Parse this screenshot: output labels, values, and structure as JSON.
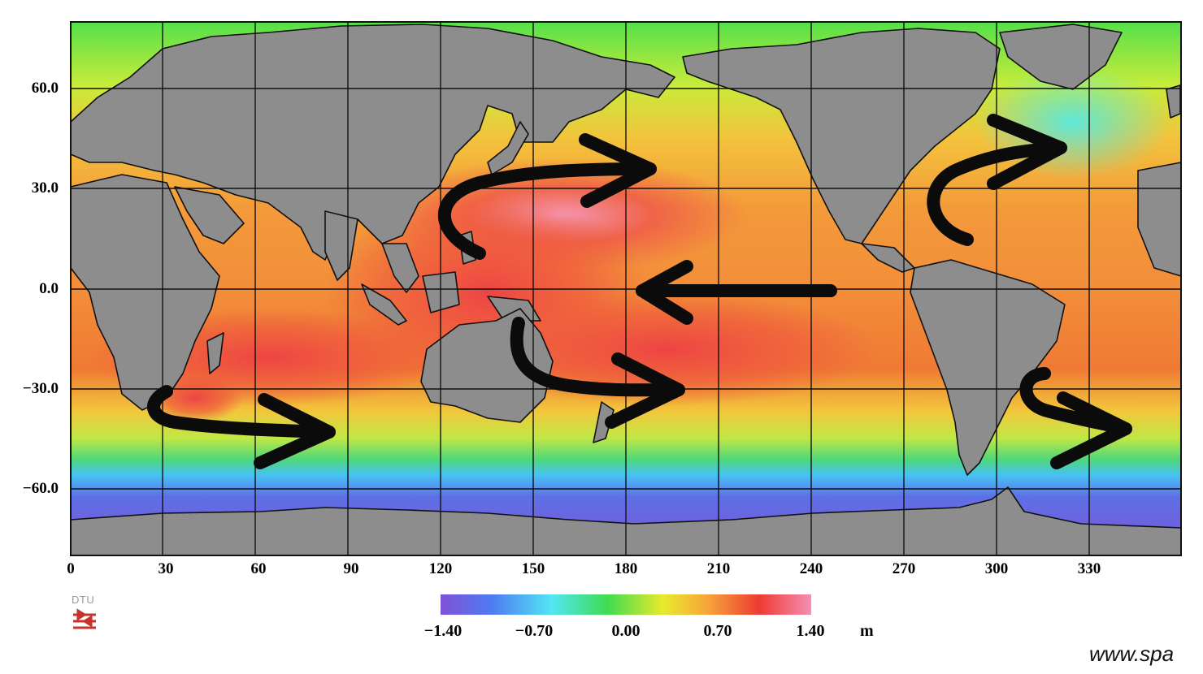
{
  "map": {
    "lat_labels": [
      "60.0",
      "30.0",
      "0.0",
      "−30.0",
      "−60.0"
    ],
    "lon_labels": [
      "0",
      "30",
      "60",
      "90",
      "120",
      "150",
      "180",
      "210",
      "240",
      "270",
      "300",
      "330"
    ],
    "lon_range": [
      0,
      360
    ],
    "lat_range": [
      -80,
      80
    ],
    "grid_step_deg": 30
  },
  "colorbar": {
    "ticks": [
      "−1.40",
      "−0.70",
      "0.00",
      "0.70",
      "1.40"
    ],
    "unit": "m",
    "range": [
      -1.4,
      1.4
    ],
    "colors": [
      "#7f52d6",
      "#4f7cf2",
      "#53e6f2",
      "#3fdc52",
      "#e9ea2c",
      "#f6a53a",
      "#ee3b33",
      "#f48fb3"
    ]
  },
  "logo": {
    "text": "DTU"
  },
  "watermark": "www.spa",
  "colors": {
    "land": "#8d8d8d",
    "arrow": "#0b0b0b",
    "grid": "#111111"
  },
  "arrows": [
    "north-pacific-clockwise-gyre",
    "equatorial-westward-current",
    "south-pacific-gyre",
    "indian-ocean-gyre",
    "north-atlantic-gyre",
    "south-atlantic-gyre"
  ]
}
